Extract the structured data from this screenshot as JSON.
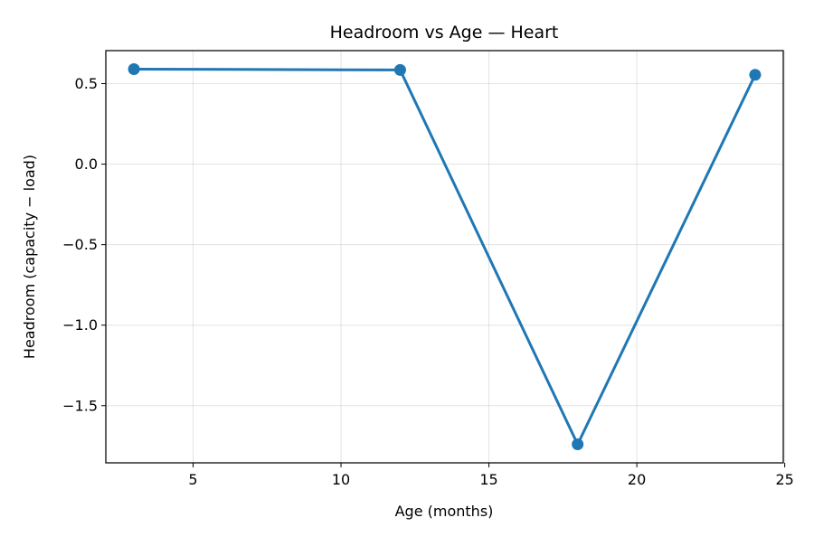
{
  "chart_data": {
    "type": "line",
    "title": "Headroom vs Age — Heart",
    "xlabel": "Age (months)",
    "ylabel": "Headroom (capacity − load)",
    "xlim": [
      2.05,
      24.95
    ],
    "ylim": [
      -1.855,
      0.705
    ],
    "xticks": [
      5,
      10,
      15,
      20,
      25
    ],
    "xtick_labels": [
      "5",
      "10",
      "15",
      "20",
      "25"
    ],
    "yticks": [
      0.5,
      0.0,
      -0.5,
      -1.0,
      -1.5
    ],
    "ytick_labels": [
      "0.5",
      "0.0",
      "−0.5",
      "−1.0",
      "−1.5"
    ],
    "grid": true,
    "series": [
      {
        "color": "#1f77b4",
        "marker": "circle",
        "x": [
          3,
          12,
          18,
          24
        ],
        "y": [
          0.59,
          0.585,
          -1.74,
          0.555
        ]
      }
    ]
  }
}
